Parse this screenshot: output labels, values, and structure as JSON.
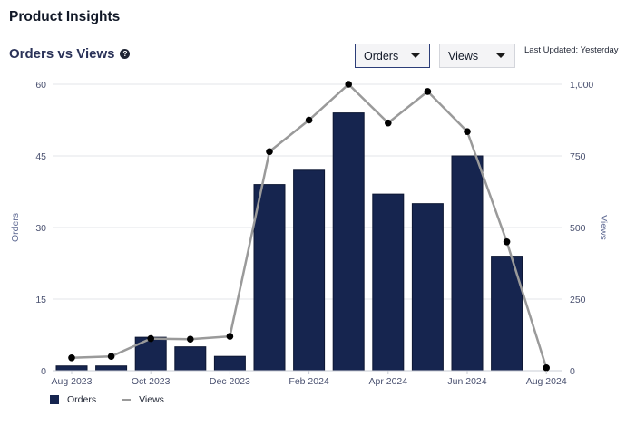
{
  "page": {
    "title": "Product Insights"
  },
  "section": {
    "title": "Orders vs Views",
    "help_icon": "question-circle-icon"
  },
  "controls": {
    "primary_metric": "Orders",
    "secondary_metric": "Views",
    "last_updated": "Last Updated: Yesterday"
  },
  "colors": {
    "bars": "#16254f",
    "line": "#9a9a9a",
    "points": "#000000"
  },
  "chart_data": {
    "type": "bar+line",
    "categories": [
      "Aug 2023",
      "Sep 2023",
      "Oct 2023",
      "Nov 2023",
      "Dec 2023",
      "Jan 2024",
      "Feb 2024",
      "Mar 2024",
      "Apr 2024",
      "May 2024",
      "Jun 2024",
      "Jul 2024",
      "Aug 2024"
    ],
    "tick_labels": [
      "Aug 2023",
      "Oct 2023",
      "Dec 2023",
      "Feb 2024",
      "Apr 2024",
      "Jun 2024",
      "Aug 2024"
    ],
    "series": [
      {
        "name": "Orders",
        "type": "bar",
        "axis": "left",
        "values": [
          1,
          1,
          7,
          5,
          3,
          39,
          42,
          54,
          37,
          35,
          45,
          24,
          0
        ]
      },
      {
        "name": "Views",
        "type": "line",
        "axis": "right",
        "values": [
          45,
          50,
          112,
          110,
          120,
          765,
          875,
          1000,
          865,
          975,
          835,
          450,
          10
        ]
      }
    ],
    "ylabel_left": "Orders",
    "ylabel_right": "Views",
    "ylim_left": [
      0,
      60
    ],
    "yticks_left": [
      "0",
      "15",
      "30",
      "45",
      "60"
    ],
    "ylim_right": [
      0,
      1000
    ],
    "yticks_right": [
      "0",
      "250",
      "500",
      "750",
      "1,000"
    ],
    "grid": true,
    "legend": "bottom-left"
  }
}
